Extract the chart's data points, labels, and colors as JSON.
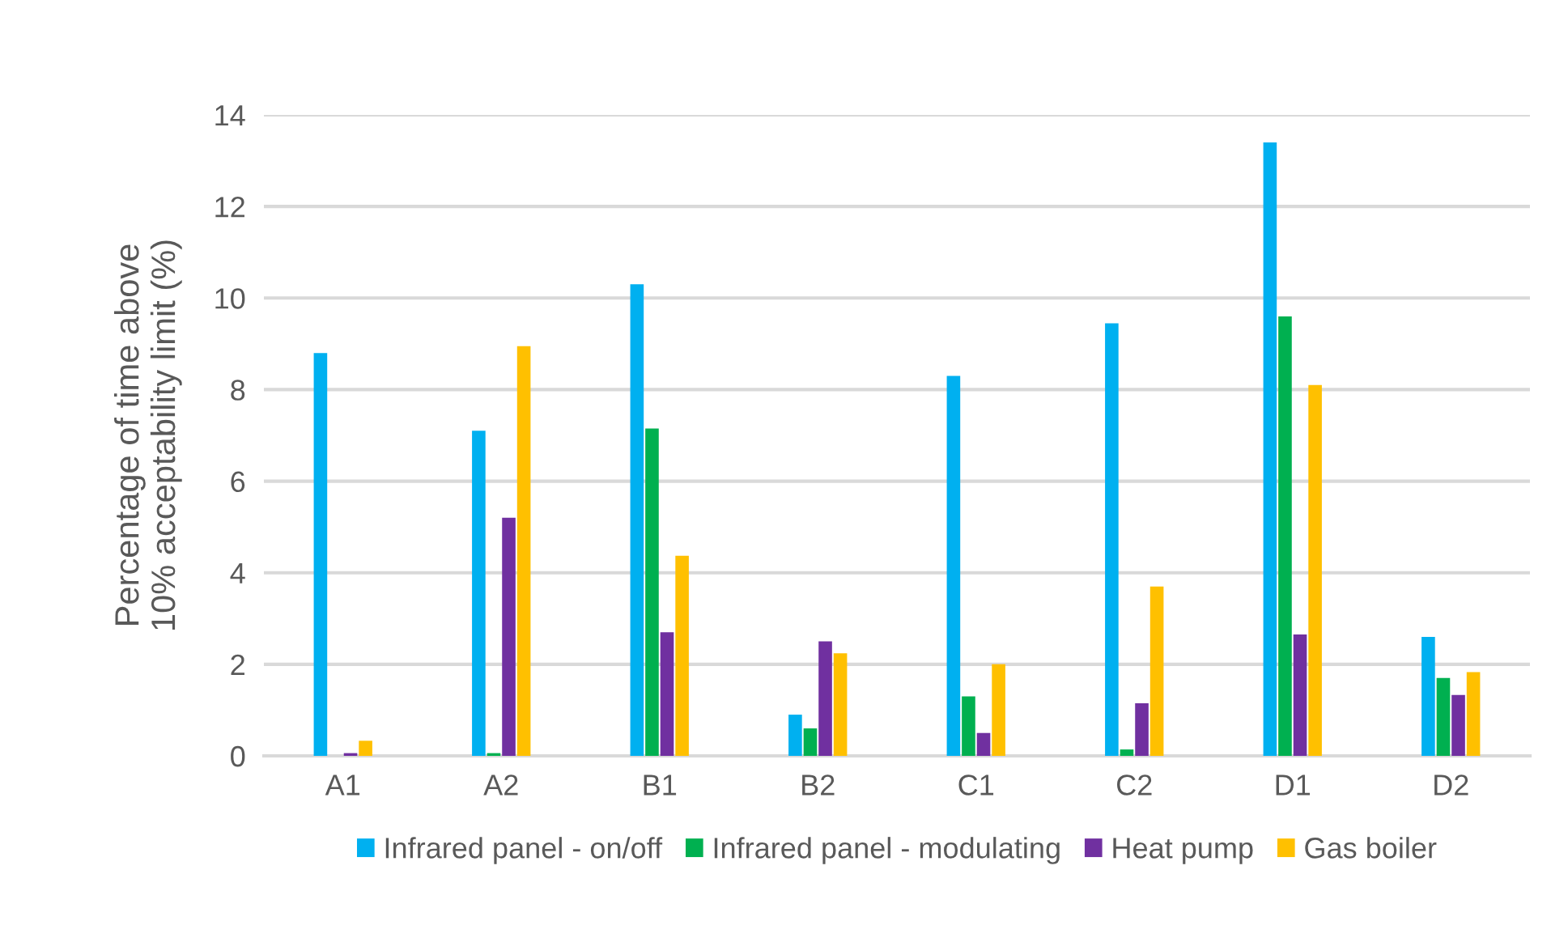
{
  "chart_data": {
    "type": "bar",
    "ylabel": "Percentage of time above\n10% acceptability limit (%)",
    "categories": [
      "A1",
      "A2",
      "B1",
      "B2",
      "C1",
      "C2",
      "D1",
      "D2"
    ],
    "series": [
      {
        "name": "Infrared panel - on/off",
        "color": "#00b0f0",
        "values": [
          8.8,
          7.1,
          10.3,
          0.9,
          8.3,
          9.45,
          13.4,
          2.6
        ]
      },
      {
        "name": "Infrared panel - modulating",
        "color": "#00b050",
        "values": [
          0,
          0.06,
          7.15,
          0.6,
          1.3,
          0.14,
          9.6,
          1.7
        ]
      },
      {
        "name": "Heat pump",
        "color": "#7030a0",
        "values": [
          0.06,
          5.2,
          2.7,
          2.5,
          0.5,
          1.15,
          2.65,
          1.33
        ]
      },
      {
        "name": "Gas boiler",
        "color": "#ffc000",
        "values": [
          0.33,
          8.95,
          4.37,
          2.24,
          2.0,
          3.7,
          8.1,
          1.83
        ]
      }
    ],
    "ylim": [
      0,
      14
    ],
    "yticks": [
      0,
      2,
      4,
      6,
      8,
      10,
      12,
      14
    ],
    "grid": "y",
    "legend": "bottom"
  }
}
